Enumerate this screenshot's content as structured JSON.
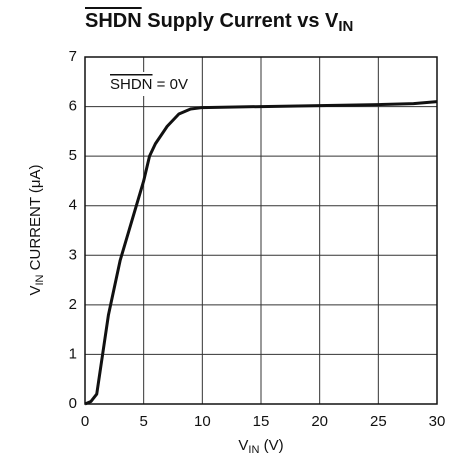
{
  "chart_data": {
    "type": "line",
    "title": [
      "SHDN",
      " Supply Current vs V",
      "IN"
    ],
    "xlabel": [
      "V",
      "IN",
      " (V)"
    ],
    "ylabel": [
      "V",
      "IN",
      " CURRENT (μA)"
    ],
    "annotation": [
      "SHDN",
      " = 0V"
    ],
    "x": [
      0,
      0.5,
      1,
      1.5,
      2,
      3,
      4,
      5,
      5.5,
      6,
      7,
      8,
      9,
      10,
      15,
      20,
      25,
      28,
      30
    ],
    "series": [
      {
        "name": "SHDN = 0V",
        "color": "#111111",
        "values": [
          0,
          0.05,
          0.2,
          1.0,
          1.8,
          2.9,
          3.7,
          4.5,
          5.0,
          5.25,
          5.6,
          5.85,
          5.95,
          5.98,
          6.0,
          6.02,
          6.04,
          6.06,
          6.1
        ]
      }
    ],
    "xlim": [
      0,
      30
    ],
    "xticks": [
      0,
      5,
      10,
      15,
      20,
      25,
      30
    ],
    "ylim": [
      0,
      7
    ],
    "yticks": [
      0,
      1,
      2,
      3,
      4,
      5,
      6,
      7
    ],
    "grid": true
  }
}
